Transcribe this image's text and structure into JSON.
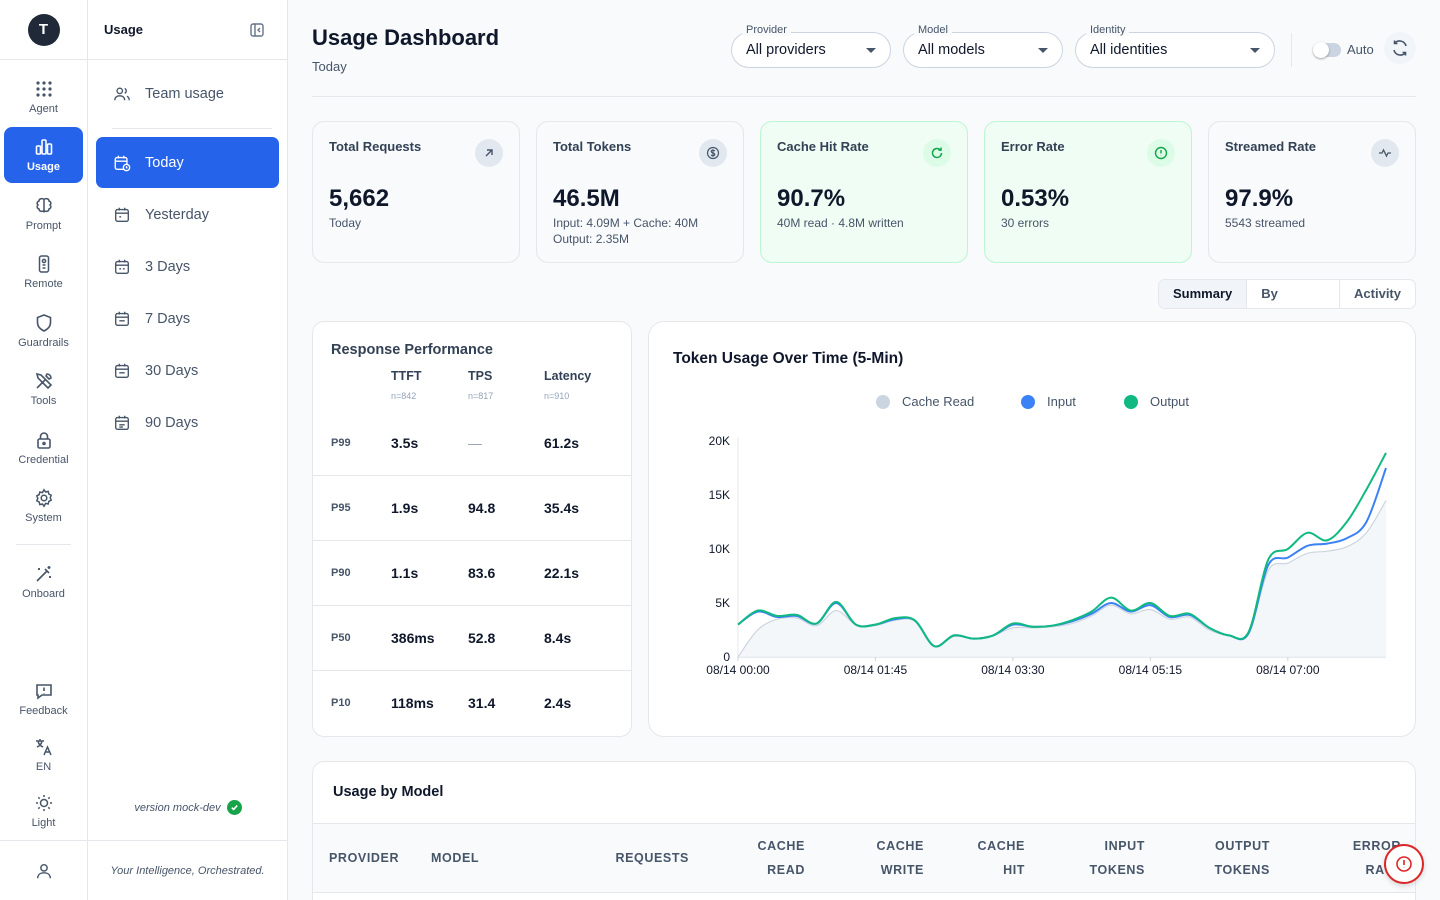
{
  "rail": {
    "logo": "T",
    "items": [
      {
        "label": "Agent"
      },
      {
        "label": "Usage"
      },
      {
        "label": "Prompt"
      },
      {
        "label": "Remote"
      },
      {
        "label": "Guardrails"
      },
      {
        "label": "Tools"
      },
      {
        "label": "Credential"
      },
      {
        "label": "System"
      },
      {
        "label": "Onboard"
      },
      {
        "label": "Feedback"
      },
      {
        "label": "EN"
      },
      {
        "label": "Light"
      }
    ]
  },
  "subnav": {
    "title": "Usage",
    "team": "Team usage",
    "ranges": [
      "Today",
      "Yesterday",
      "3 Days",
      "7 Days",
      "30 Days",
      "90 Days"
    ],
    "version": "version mock-dev",
    "tagline": "Your Intelligence, Orchestrated."
  },
  "header": {
    "title": "Usage Dashboard",
    "subtitle": "Today",
    "filters": [
      {
        "label": "Provider",
        "value": "All providers"
      },
      {
        "label": "Model",
        "value": "All models"
      },
      {
        "label": "Identity",
        "value": "All identities"
      }
    ],
    "auto_label": "Auto",
    "auto_on": false
  },
  "cards": [
    {
      "title": "Total Requests",
      "value": "5,662",
      "sub": "Today",
      "sub2": "",
      "icon": "arrow-up-right-icon"
    },
    {
      "title": "Total Tokens",
      "value": "46.5M",
      "sub": "Input: 4.09M + Cache: 40M",
      "sub2": "Output: 2.35M",
      "icon": "dollar-icon"
    },
    {
      "title": "Cache Hit Rate",
      "value": "90.7%",
      "sub": "40M read · 4.8M written",
      "sub2": "",
      "icon": "refresh-icon"
    },
    {
      "title": "Error Rate",
      "value": "0.53%",
      "sub": "30 errors",
      "sub2": "",
      "icon": "alert-circle-icon"
    },
    {
      "title": "Streamed Rate",
      "value": "97.9%",
      "sub": "5543 streamed",
      "sub2": "",
      "icon": "activity-icon"
    }
  ],
  "tabs": [
    "Summary",
    "By Request",
    "Activity"
  ],
  "performance": {
    "title": "Response Performance",
    "columns": [
      {
        "label": "TTFT",
        "n": "n=842"
      },
      {
        "label": "TPS",
        "n": "n=817"
      },
      {
        "label": "Latency",
        "n": "n=910"
      }
    ],
    "rows": [
      {
        "p": "P99",
        "ttft": "3.5s",
        "tps": "—",
        "latency": "61.2s"
      },
      {
        "p": "P95",
        "ttft": "1.9s",
        "tps": "94.8",
        "latency": "35.4s"
      },
      {
        "p": "P90",
        "ttft": "1.1s",
        "tps": "83.6",
        "latency": "22.1s"
      },
      {
        "p": "P50",
        "ttft": "386ms",
        "tps": "52.8",
        "latency": "8.4s"
      },
      {
        "p": "P10",
        "ttft": "118ms",
        "tps": "31.4",
        "latency": "2.4s"
      }
    ]
  },
  "chart_data": {
    "type": "line",
    "title": "Token Usage Over Time (5-Min)",
    "xlabel": "",
    "ylabel": "",
    "ylim": [
      0,
      20000
    ],
    "yticks": [
      0,
      5000,
      10000,
      15000,
      20000
    ],
    "ytick_labels": [
      "0",
      "5K",
      "10K",
      "15K",
      "20K"
    ],
    "xtick_labels": [
      "08/14 00:00",
      "08/14 01:45",
      "08/14 03:30",
      "08/14 05:15",
      "08/14 07:00"
    ],
    "x": [
      "00:00",
      "00:15",
      "00:30",
      "00:45",
      "01:00",
      "01:15",
      "01:30",
      "01:45",
      "02:00",
      "02:15",
      "02:30",
      "02:45",
      "03:00",
      "03:15",
      "03:30",
      "03:45",
      "04:00",
      "04:15",
      "04:30",
      "04:45",
      "05:00",
      "05:15",
      "05:30",
      "05:45",
      "06:00",
      "06:15",
      "06:30",
      "06:45",
      "07:00",
      "07:15",
      "07:30",
      "07:45",
      "08:00",
      "08:15"
    ],
    "grid": false,
    "legend": "top-center",
    "colors": {
      "Cache Read": "#cbd5e1",
      "Input": "#3b82f6",
      "Output": "#10b981"
    },
    "series": [
      {
        "name": "Cache Read",
        "values": [
          0,
          2500,
          3500,
          3600,
          2900,
          4300,
          3000,
          2900,
          3400,
          3300,
          1000,
          1900,
          1700,
          2000,
          2700,
          2700,
          2800,
          3100,
          3800,
          4800,
          4000,
          4400,
          3500,
          3700,
          2500,
          2000,
          2100,
          8000,
          8700,
          9600,
          9800,
          10200,
          11500,
          14500
        ]
      },
      {
        "name": "Input",
        "values": [
          3000,
          4200,
          3700,
          3800,
          3100,
          5000,
          3000,
          3000,
          3500,
          3400,
          1000,
          2000,
          1700,
          2000,
          3000,
          2800,
          2900,
          3300,
          4000,
          5000,
          4200,
          4800,
          3700,
          3900,
          2700,
          2000,
          2200,
          8500,
          9200,
          10300,
          10500,
          11000,
          12500,
          17500
        ]
      },
      {
        "name": "Output",
        "values": [
          3000,
          4300,
          3800,
          3900,
          3100,
          5100,
          3000,
          3000,
          3600,
          3400,
          1000,
          2000,
          1700,
          2000,
          3100,
          2800,
          2900,
          3400,
          4200,
          5500,
          4300,
          5000,
          3800,
          4000,
          2700,
          2000,
          2300,
          9000,
          10000,
          11500,
          10800,
          12500,
          15500,
          18900
        ]
      }
    ]
  },
  "model_table": {
    "title": "Usage by Model",
    "columns": [
      {
        "l1": "PROVIDER",
        "l2": ""
      },
      {
        "l1": "MODEL",
        "l2": ""
      },
      {
        "l1": "REQUESTS",
        "l2": ""
      },
      {
        "l1": "CACHE",
        "l2": "READ"
      },
      {
        "l1": "CACHE",
        "l2": "WRITE"
      },
      {
        "l1": "CACHE",
        "l2": "HIT"
      },
      {
        "l1": "INPUT",
        "l2": "TOKENS"
      },
      {
        "l1": "OUTPUT",
        "l2": "TOKENS"
      },
      {
        "l1": "ERROR",
        "l2": "RATE"
      }
    ]
  }
}
